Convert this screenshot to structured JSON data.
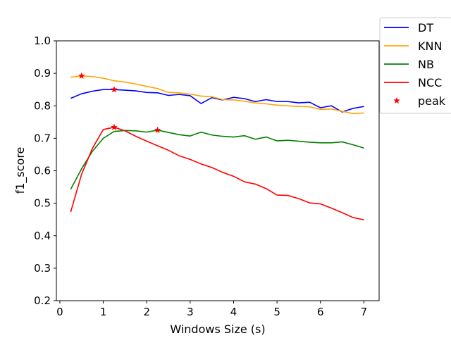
{
  "chart_data": {
    "type": "line",
    "xlabel": "Windows Size (s)",
    "ylabel": "f1_score",
    "xlim": [
      -0.08,
      7.35
    ],
    "ylim": [
      0.2,
      1.0
    ],
    "x_ticks": [
      "0",
      "1",
      "2",
      "3",
      "4",
      "5",
      "6",
      "7"
    ],
    "y_ticks": [
      "0.2",
      "0.3",
      "0.4",
      "0.5",
      "0.6",
      "0.7",
      "0.8",
      "0.9",
      "1.0"
    ],
    "grid": false,
    "legend_position": "outside top-right",
    "x": [
      0.25,
      0.5,
      0.75,
      1.0,
      1.25,
      1.5,
      1.75,
      2.0,
      2.25,
      2.5,
      2.75,
      3.0,
      3.25,
      3.5,
      3.75,
      4.0,
      4.25,
      4.5,
      4.75,
      5.0,
      5.25,
      5.5,
      5.75,
      6.0,
      6.25,
      6.5,
      6.75,
      7.0
    ],
    "series": [
      {
        "name": "DT",
        "color": "#0000ff",
        "values": [
          0.823,
          0.837,
          0.845,
          0.85,
          0.85,
          0.848,
          0.846,
          0.841,
          0.84,
          0.832,
          0.835,
          0.831,
          0.807,
          0.825,
          0.818,
          0.826,
          0.822,
          0.813,
          0.819,
          0.813,
          0.813,
          0.809,
          0.811,
          0.794,
          0.8,
          0.781,
          0.792,
          0.798
        ]
      },
      {
        "name": "KNN",
        "color": "#ffa500",
        "values": [
          0.888,
          0.892,
          0.89,
          0.885,
          0.877,
          0.873,
          0.867,
          0.86,
          0.853,
          0.841,
          0.84,
          0.836,
          0.83,
          0.828,
          0.819,
          0.818,
          0.814,
          0.809,
          0.806,
          0.802,
          0.8,
          0.798,
          0.797,
          0.789,
          0.79,
          0.783,
          0.776,
          0.778
        ]
      },
      {
        "name": "NB",
        "color": "#008000",
        "values": [
          0.543,
          0.606,
          0.66,
          0.7,
          0.721,
          0.724,
          0.723,
          0.719,
          0.725,
          0.718,
          0.711,
          0.707,
          0.719,
          0.71,
          0.706,
          0.704,
          0.708,
          0.697,
          0.704,
          0.692,
          0.694,
          0.691,
          0.688,
          0.686,
          0.686,
          0.689,
          0.68,
          0.67
        ]
      },
      {
        "name": "NCC",
        "color": "#ff0000",
        "values": [
          0.473,
          0.589,
          0.669,
          0.727,
          0.734,
          0.723,
          0.706,
          0.691,
          0.677,
          0.663,
          0.646,
          0.635,
          0.621,
          0.61,
          0.595,
          0.583,
          0.566,
          0.559,
          0.545,
          0.525,
          0.524,
          0.514,
          0.501,
          0.498,
          0.485,
          0.471,
          0.456,
          0.449
        ]
      }
    ],
    "peaks": {
      "name": "peak",
      "color": "#ff0000",
      "marker": "star",
      "points": [
        {
          "x": 0.5,
          "y": 0.892
        },
        {
          "x": 1.25,
          "y": 0.85
        },
        {
          "x": 1.25,
          "y": 0.734
        },
        {
          "x": 2.25,
          "y": 0.725
        }
      ]
    }
  }
}
